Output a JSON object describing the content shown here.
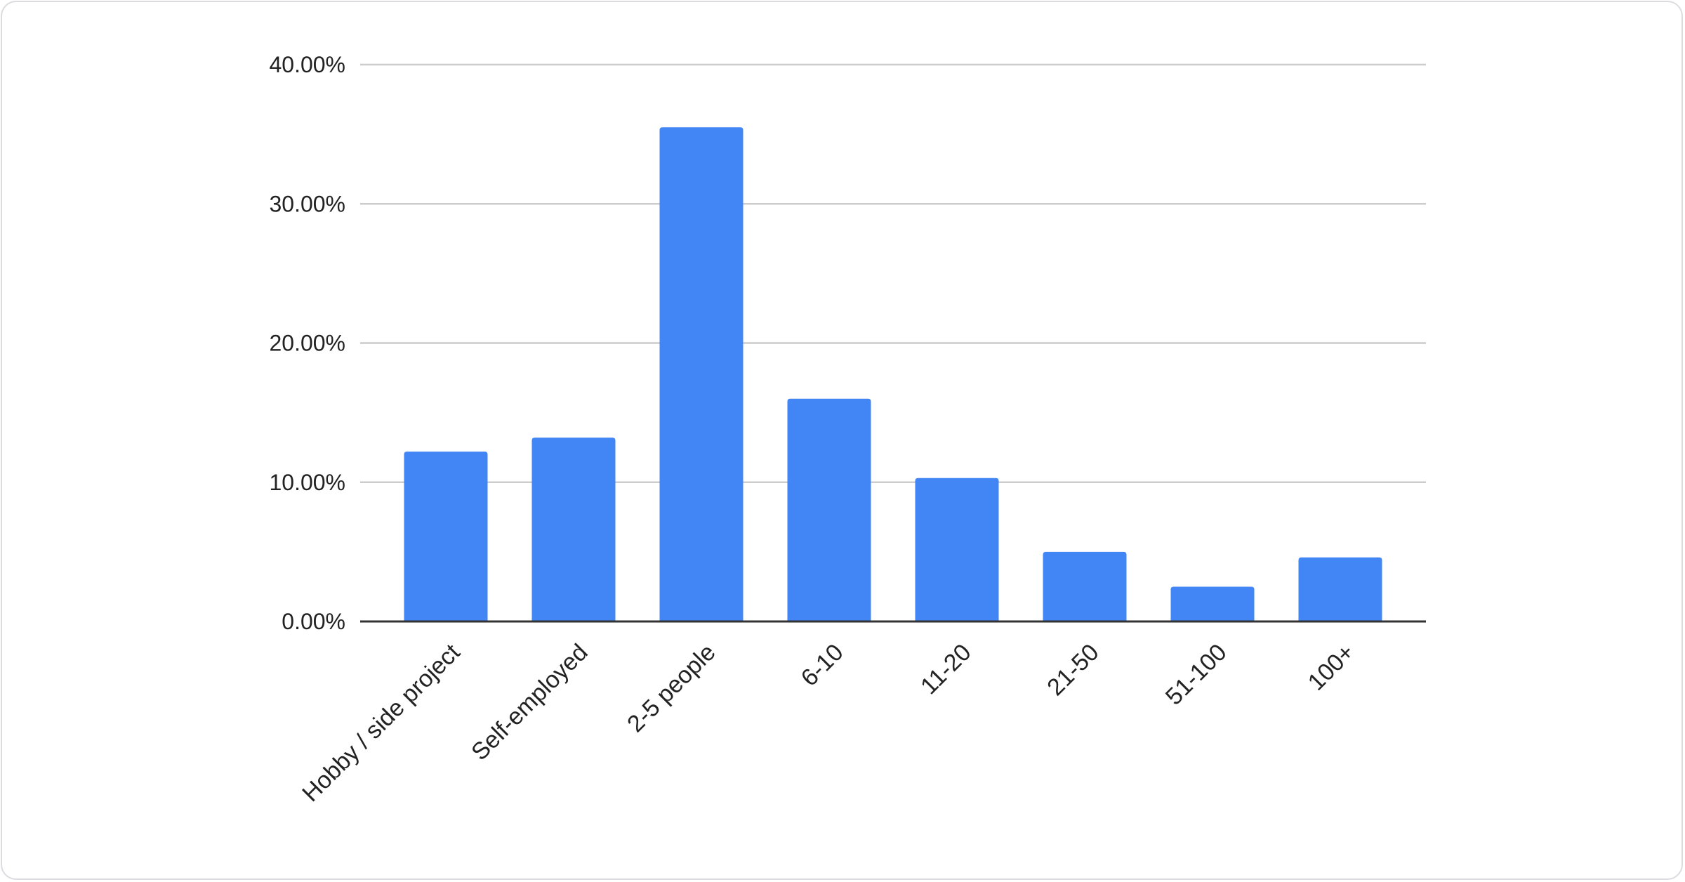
{
  "chart_data": {
    "type": "bar",
    "title": "",
    "xlabel": "",
    "ylabel": "",
    "categories": [
      "Hobby / side project",
      "Self-employed",
      "2-5 people",
      "6-10",
      "11-20",
      "21-50",
      "51-100",
      "100+"
    ],
    "values": [
      12.2,
      13.2,
      35.5,
      16.0,
      10.3,
      5.0,
      2.5,
      4.6
    ],
    "value_unit": "%",
    "ylim": [
      0,
      40
    ],
    "y_ticks": [
      0,
      10,
      20,
      30,
      40
    ],
    "y_tick_labels": [
      "0.00%",
      "10.00%",
      "20.00%",
      "30.00%",
      "40.00%"
    ],
    "grid": true,
    "legend": "none",
    "colors": {
      "bar": "#4285f4",
      "grid": "#cccccc",
      "axis": "#333333"
    }
  }
}
